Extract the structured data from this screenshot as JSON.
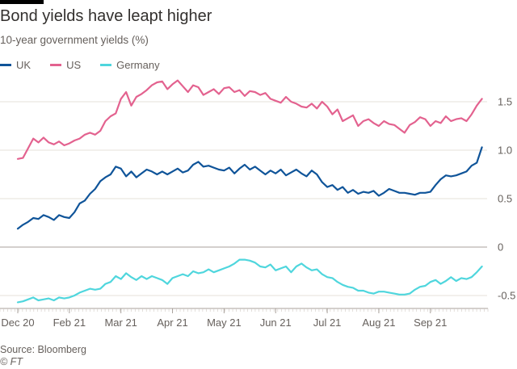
{
  "header": {
    "title": "Bond yields have leapt higher",
    "subtitle": "10-year government yields (%)"
  },
  "footer": {
    "source": "Source: Bloomberg",
    "logo": "© FT"
  },
  "colors": {
    "UK": "#0f5499",
    "US": "#e3628f",
    "Germany": "#4fd6dd",
    "grid": "#e6e0da",
    "zero": "#a8a19b",
    "axis_text": "#66605c"
  },
  "chart_data": {
    "type": "line",
    "title": "Bond yields have leapt higher",
    "subtitle": "10-year government yields (%)",
    "xlabel": "",
    "ylabel": "",
    "ylim": [
      -0.6,
      1.75
    ],
    "yticks": [
      -0.5,
      0,
      0.5,
      1.0,
      1.5
    ],
    "ytick_labels": [
      "-0.5",
      "0",
      "0.5",
      "1.0",
      "1.5"
    ],
    "xlim": [
      0,
      9.1
    ],
    "xticks": [
      0,
      1,
      2,
      3,
      4,
      5,
      6,
      7,
      8
    ],
    "xtick_labels": [
      "Dec 20",
      "Feb 21",
      "Mar 21",
      "Apr 21",
      "May 21",
      "Jun 21",
      "Jul 21",
      "Aug 21",
      "Sep 21"
    ],
    "legend_position": "top-left",
    "series": [
      {
        "name": "UK",
        "x": [
          0,
          0.1,
          0.2,
          0.3,
          0.4,
          0.5,
          0.6,
          0.7,
          0.8,
          0.9,
          1.0,
          1.1,
          1.2,
          1.3,
          1.4,
          1.5,
          1.6,
          1.7,
          1.8,
          1.9,
          2.0,
          2.1,
          2.2,
          2.3,
          2.4,
          2.5,
          2.6,
          2.7,
          2.8,
          2.9,
          3.0,
          3.1,
          3.2,
          3.3,
          3.4,
          3.5,
          3.6,
          3.7,
          3.8,
          3.9,
          4.0,
          4.1,
          4.2,
          4.3,
          4.4,
          4.5,
          4.6,
          4.7,
          4.8,
          4.9,
          5.0,
          5.1,
          5.2,
          5.3,
          5.4,
          5.5,
          5.6,
          5.7,
          5.8,
          5.9,
          6.0,
          6.1,
          6.2,
          6.3,
          6.4,
          6.5,
          6.6,
          6.7,
          6.8,
          6.9,
          7.0,
          7.1,
          7.2,
          7.3,
          7.4,
          7.5,
          7.6,
          7.7,
          7.8,
          7.9,
          8.0,
          8.1,
          8.2,
          8.3,
          8.4,
          8.5,
          8.6,
          8.7,
          8.8,
          8.9,
          9.0
        ],
        "values": [
          0.19,
          0.23,
          0.26,
          0.3,
          0.29,
          0.33,
          0.31,
          0.28,
          0.33,
          0.31,
          0.3,
          0.36,
          0.45,
          0.48,
          0.55,
          0.6,
          0.68,
          0.72,
          0.75,
          0.83,
          0.81,
          0.73,
          0.78,
          0.72,
          0.76,
          0.8,
          0.78,
          0.75,
          0.78,
          0.75,
          0.78,
          0.81,
          0.77,
          0.79,
          0.85,
          0.88,
          0.83,
          0.84,
          0.82,
          0.8,
          0.79,
          0.82,
          0.76,
          0.81,
          0.85,
          0.8,
          0.83,
          0.79,
          0.75,
          0.79,
          0.76,
          0.8,
          0.74,
          0.77,
          0.8,
          0.76,
          0.73,
          0.79,
          0.75,
          0.67,
          0.62,
          0.64,
          0.59,
          0.62,
          0.56,
          0.59,
          0.55,
          0.57,
          0.56,
          0.58,
          0.53,
          0.56,
          0.6,
          0.58,
          0.56,
          0.56,
          0.55,
          0.54,
          0.56,
          0.56,
          0.57,
          0.64,
          0.7,
          0.74,
          0.73,
          0.74,
          0.76,
          0.78,
          0.84,
          0.87,
          1.03
        ]
      },
      {
        "name": "US",
        "x": [
          0,
          0.1,
          0.2,
          0.3,
          0.4,
          0.5,
          0.6,
          0.7,
          0.8,
          0.9,
          1.0,
          1.1,
          1.2,
          1.3,
          1.4,
          1.5,
          1.6,
          1.7,
          1.8,
          1.9,
          2.0,
          2.1,
          2.2,
          2.3,
          2.4,
          2.5,
          2.6,
          2.7,
          2.8,
          2.9,
          3.0,
          3.1,
          3.2,
          3.3,
          3.4,
          3.5,
          3.6,
          3.7,
          3.8,
          3.9,
          4.0,
          4.1,
          4.2,
          4.3,
          4.4,
          4.5,
          4.6,
          4.7,
          4.8,
          4.9,
          5.0,
          5.1,
          5.2,
          5.3,
          5.4,
          5.5,
          5.6,
          5.7,
          5.8,
          5.9,
          6.0,
          6.1,
          6.2,
          6.3,
          6.4,
          6.5,
          6.6,
          6.7,
          6.8,
          6.9,
          7.0,
          7.1,
          7.2,
          7.3,
          7.4,
          7.5,
          7.6,
          7.7,
          7.8,
          7.9,
          8.0,
          8.1,
          8.2,
          8.3,
          8.4,
          8.5,
          8.6,
          8.7,
          8.8,
          8.9,
          9.0
        ],
        "values": [
          0.91,
          0.92,
          1.02,
          1.12,
          1.08,
          1.13,
          1.08,
          1.06,
          1.09,
          1.05,
          1.07,
          1.1,
          1.12,
          1.16,
          1.18,
          1.16,
          1.2,
          1.3,
          1.35,
          1.38,
          1.53,
          1.6,
          1.46,
          1.55,
          1.58,
          1.62,
          1.67,
          1.7,
          1.71,
          1.63,
          1.68,
          1.72,
          1.66,
          1.6,
          1.67,
          1.65,
          1.57,
          1.6,
          1.63,
          1.58,
          1.64,
          1.65,
          1.6,
          1.62,
          1.56,
          1.61,
          1.6,
          1.57,
          1.59,
          1.53,
          1.51,
          1.49,
          1.55,
          1.5,
          1.48,
          1.45,
          1.44,
          1.48,
          1.43,
          1.5,
          1.45,
          1.37,
          1.42,
          1.3,
          1.33,
          1.36,
          1.25,
          1.3,
          1.32,
          1.28,
          1.25,
          1.3,
          1.27,
          1.26,
          1.22,
          1.18,
          1.26,
          1.29,
          1.34,
          1.32,
          1.25,
          1.3,
          1.28,
          1.35,
          1.3,
          1.32,
          1.33,
          1.3,
          1.37,
          1.46,
          1.53
        ]
      },
      {
        "name": "Germany",
        "x": [
          0,
          0.1,
          0.2,
          0.3,
          0.4,
          0.5,
          0.6,
          0.7,
          0.8,
          0.9,
          1.0,
          1.1,
          1.2,
          1.3,
          1.4,
          1.5,
          1.6,
          1.7,
          1.8,
          1.9,
          2.0,
          2.1,
          2.2,
          2.3,
          2.4,
          2.5,
          2.6,
          2.7,
          2.8,
          2.9,
          3.0,
          3.1,
          3.2,
          3.3,
          3.4,
          3.5,
          3.6,
          3.7,
          3.8,
          3.9,
          4.0,
          4.1,
          4.2,
          4.3,
          4.4,
          4.5,
          4.6,
          4.7,
          4.8,
          4.9,
          5.0,
          5.1,
          5.2,
          5.3,
          5.4,
          5.5,
          5.6,
          5.7,
          5.8,
          5.9,
          6.0,
          6.1,
          6.2,
          6.3,
          6.4,
          6.5,
          6.6,
          6.7,
          6.8,
          6.9,
          7.0,
          7.1,
          7.2,
          7.3,
          7.4,
          7.5,
          7.6,
          7.7,
          7.8,
          7.9,
          8.0,
          8.1,
          8.2,
          8.3,
          8.4,
          8.5,
          8.6,
          8.7,
          8.8,
          8.9,
          9.0
        ],
        "values": [
          -0.57,
          -0.56,
          -0.54,
          -0.52,
          -0.55,
          -0.54,
          -0.53,
          -0.55,
          -0.52,
          -0.53,
          -0.52,
          -0.5,
          -0.47,
          -0.45,
          -0.43,
          -0.44,
          -0.43,
          -0.38,
          -0.36,
          -0.3,
          -0.33,
          -0.27,
          -0.31,
          -0.34,
          -0.3,
          -0.33,
          -0.3,
          -0.32,
          -0.34,
          -0.38,
          -0.32,
          -0.3,
          -0.28,
          -0.3,
          -0.25,
          -0.27,
          -0.26,
          -0.23,
          -0.26,
          -0.24,
          -0.22,
          -0.2,
          -0.17,
          -0.13,
          -0.13,
          -0.14,
          -0.16,
          -0.2,
          -0.21,
          -0.18,
          -0.24,
          -0.22,
          -0.2,
          -0.26,
          -0.2,
          -0.17,
          -0.21,
          -0.24,
          -0.23,
          -0.28,
          -0.31,
          -0.32,
          -0.36,
          -0.39,
          -0.41,
          -0.42,
          -0.45,
          -0.45,
          -0.47,
          -0.48,
          -0.46,
          -0.46,
          -0.47,
          -0.48,
          -0.49,
          -0.49,
          -0.48,
          -0.44,
          -0.41,
          -0.4,
          -0.36,
          -0.34,
          -0.38,
          -0.35,
          -0.31,
          -0.35,
          -0.32,
          -0.33,
          -0.31,
          -0.26,
          -0.2
        ]
      }
    ]
  }
}
